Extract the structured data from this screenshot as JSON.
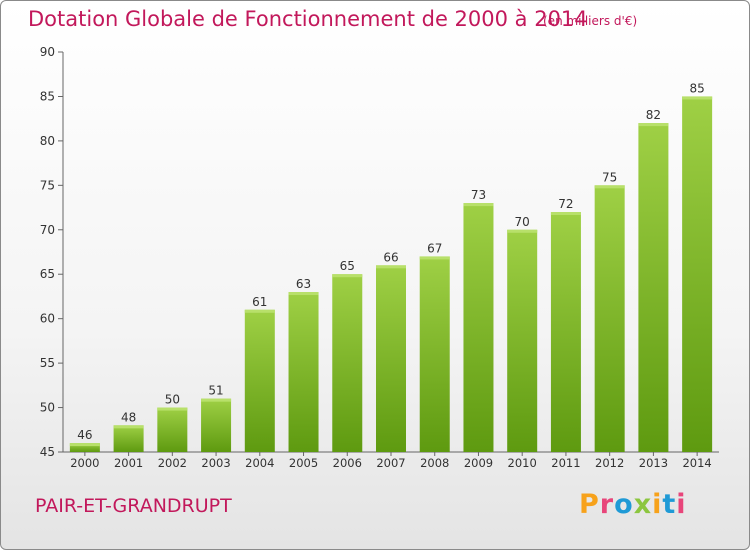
{
  "header": {
    "title": "Dotation Globale de Fonctionnement de 2000 à 2014",
    "unit": "(en milliers d'€)"
  },
  "footer": {
    "commune": "PAIR-ET-GRANDRUPT",
    "brand": "Proxiti"
  },
  "colors": {
    "title": "#c2185b",
    "bar_top": "#9fd045",
    "bar_bottom": "#5e9a10",
    "brand_letters": [
      "#f7a21b",
      "#e8457a",
      "#1f9ad6",
      "#8cc63f",
      "#f7a21b",
      "#1f9ad6",
      "#e8457a"
    ]
  },
  "chart_data": {
    "type": "bar",
    "title": "Dotation Globale de Fonctionnement de 2000 à 2014",
    "subtitle": "(en milliers d'€)",
    "categories": [
      "2000",
      "2001",
      "2002",
      "2003",
      "2004",
      "2005",
      "2006",
      "2007",
      "2008",
      "2009",
      "2010",
      "2011",
      "2012",
      "2013",
      "2014"
    ],
    "values": [
      46,
      48,
      50,
      51,
      61,
      63,
      65,
      66,
      67,
      73,
      70,
      72,
      75,
      82,
      85
    ],
    "ylim": [
      45,
      90
    ],
    "yticks": [
      45,
      50,
      55,
      60,
      65,
      70,
      75,
      80,
      85,
      90
    ],
    "grid": false,
    "data_labels": true,
    "legend": "none"
  }
}
